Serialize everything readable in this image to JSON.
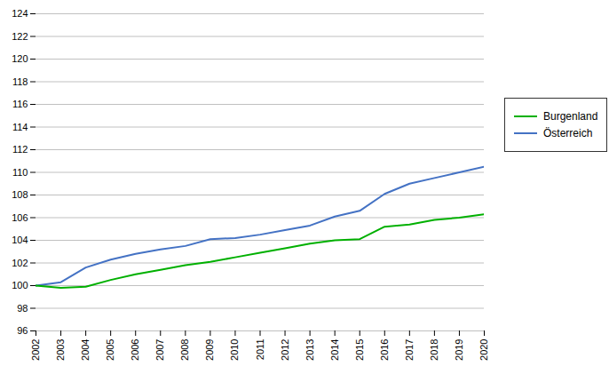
{
  "chart_data": {
    "type": "line",
    "x": [
      2002,
      2003,
      2004,
      2005,
      2006,
      2007,
      2008,
      2009,
      2010,
      2011,
      2012,
      2013,
      2014,
      2015,
      2016,
      2017,
      2018,
      2019,
      2020
    ],
    "series": [
      {
        "name": "Burgenland",
        "color": "#00b000",
        "values": [
          100.0,
          99.8,
          99.9,
          100.5,
          101.0,
          101.4,
          101.8,
          102.1,
          102.5,
          102.9,
          103.3,
          103.7,
          104.0,
          104.1,
          105.2,
          105.4,
          105.8,
          106.0,
          106.3
        ]
      },
      {
        "name": "Österreich",
        "color": "#4472c4",
        "values": [
          100.0,
          100.3,
          101.6,
          102.3,
          102.8,
          103.2,
          103.5,
          104.1,
          104.2,
          104.5,
          104.9,
          105.3,
          106.1,
          106.6,
          108.1,
          109.0,
          109.5,
          110.0,
          110.5
        ]
      }
    ],
    "xlim": [
      2002,
      2020
    ],
    "xticks": [
      2002,
      2003,
      2004,
      2005,
      2006,
      2007,
      2008,
      2009,
      2010,
      2011,
      2012,
      2013,
      2014,
      2015,
      2016,
      2017,
      2018,
      2019,
      2020
    ],
    "ylim": [
      96,
      124
    ],
    "yticks": [
      96,
      98,
      100,
      102,
      104,
      106,
      108,
      110,
      112,
      114,
      116,
      118,
      120,
      122,
      124
    ],
    "grid": true,
    "legend": "right"
  }
}
